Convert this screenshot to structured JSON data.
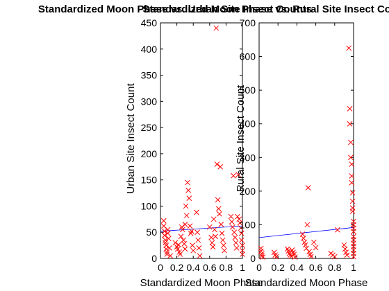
{
  "chart_data": [
    {
      "type": "scatter",
      "title": "Standardized Moon Phase vs. Urban Site Insect Counts",
      "xlabel": "Standardized Moon Phase",
      "ylabel": "Urban Site Insect Count",
      "xlim": [
        0,
        1
      ],
      "ylim": [
        0,
        450
      ],
      "xticks": [
        "0",
        "0.2",
        "0.4",
        "0.6",
        "0.8",
        "1"
      ],
      "yticks": [
        "0",
        "50",
        "100",
        "150",
        "200",
        "250",
        "300",
        "350",
        "400",
        "450"
      ],
      "grid": false,
      "marker_color": "#ff0000",
      "trend_color": "#0000ff",
      "trend": {
        "x": [
          0,
          1
        ],
        "y": [
          52,
          62
        ]
      },
      "points": [
        [
          0.04,
          72
        ],
        [
          0.04,
          62
        ],
        [
          0.05,
          52
        ],
        [
          0.05,
          44
        ],
        [
          0.06,
          35
        ],
        [
          0.06,
          30
        ],
        [
          0.07,
          25
        ],
        [
          0.07,
          18
        ],
        [
          0.08,
          12
        ],
        [
          0.08,
          8
        ],
        [
          0.09,
          55
        ],
        [
          0.09,
          48
        ],
        [
          0.1,
          38
        ],
        [
          0.11,
          20
        ],
        [
          0.12,
          5
        ],
        [
          0.18,
          30
        ],
        [
          0.2,
          22
        ],
        [
          0.21,
          18
        ],
        [
          0.22,
          26
        ],
        [
          0.23,
          12
        ],
        [
          0.24,
          8
        ],
        [
          0.25,
          42
        ],
        [
          0.26,
          60
        ],
        [
          0.27,
          55
        ],
        [
          0.28,
          35
        ],
        [
          0.29,
          28
        ],
        [
          0.3,
          18
        ],
        [
          0.3,
          65
        ],
        [
          0.31,
          100
        ],
        [
          0.32,
          82
        ],
        [
          0.33,
          145
        ],
        [
          0.34,
          130
        ],
        [
          0.35,
          115
        ],
        [
          0.36,
          62
        ],
        [
          0.37,
          48
        ],
        [
          0.38,
          52
        ],
        [
          0.39,
          25
        ],
        [
          0.4,
          15
        ],
        [
          0.44,
          88
        ],
        [
          0.45,
          50
        ],
        [
          0.46,
          35
        ],
        [
          0.47,
          20
        ],
        [
          0.48,
          5
        ],
        [
          0.6,
          60
        ],
        [
          0.62,
          40
        ],
        [
          0.63,
          30
        ],
        [
          0.64,
          22
        ],
        [
          0.65,
          75
        ],
        [
          0.66,
          55
        ],
        [
          0.67,
          42
        ],
        [
          0.68,
          440
        ],
        [
          0.69,
          180
        ],
        [
          0.7,
          112
        ],
        [
          0.71,
          95
        ],
        [
          0.72,
          85
        ],
        [
          0.73,
          175
        ],
        [
          0.74,
          65
        ],
        [
          0.75,
          48
        ],
        [
          0.76,
          35
        ],
        [
          0.77,
          25
        ],
        [
          0.78,
          15
        ],
        [
          0.86,
          80
        ],
        [
          0.87,
          70
        ],
        [
          0.88,
          60
        ],
        [
          0.89,
          158
        ],
        [
          0.9,
          50
        ],
        [
          0.91,
          40
        ],
        [
          0.92,
          30
        ],
        [
          0.93,
          20
        ],
        [
          0.94,
          80
        ],
        [
          0.95,
          160
        ],
        [
          0.96,
          75
        ],
        [
          0.97,
          68
        ],
        [
          0.98,
          58
        ],
        [
          0.99,
          48
        ],
        [
          0.99,
          35
        ],
        [
          1,
          25
        ],
        [
          1,
          15
        ],
        [
          1,
          8
        ]
      ]
    },
    {
      "type": "scatter",
      "title": "Standardized Moon Phase vs. Rural Site Insect Counts",
      "xlabel": "Standardized Moon Phase",
      "ylabel": "Rural Site Insect Count",
      "xlim": [
        0,
        1
      ],
      "ylim": [
        0,
        700
      ],
      "xticks": [
        "0",
        "0.2",
        "0.4",
        "0.6",
        "0.8",
        "1"
      ],
      "yticks": [
        "0",
        "100",
        "200",
        "300",
        "400",
        "500",
        "600",
        "700"
      ],
      "grid": false,
      "marker_color": "#ff0000",
      "trend_color": "#0000ff",
      "trend": {
        "x": [
          0,
          1
        ],
        "y": [
          62,
          92
        ]
      },
      "points": [
        [
          0.02,
          30
        ],
        [
          0.02,
          22
        ],
        [
          0.03,
          14
        ],
        [
          0.03,
          8
        ],
        [
          0.04,
          4
        ],
        [
          0.16,
          18
        ],
        [
          0.17,
          10
        ],
        [
          0.18,
          5
        ],
        [
          0.3,
          28
        ],
        [
          0.31,
          22
        ],
        [
          0.32,
          15
        ],
        [
          0.33,
          10
        ],
        [
          0.34,
          6
        ],
        [
          0.35,
          25
        ],
        [
          0.36,
          18
        ],
        [
          0.37,
          12
        ],
        [
          0.38,
          4
        ],
        [
          0.46,
          72
        ],
        [
          0.47,
          60
        ],
        [
          0.48,
          48
        ],
        [
          0.49,
          40
        ],
        [
          0.5,
          30
        ],
        [
          0.51,
          100
        ],
        [
          0.52,
          210
        ],
        [
          0.53,
          20
        ],
        [
          0.54,
          12
        ],
        [
          0.55,
          6
        ],
        [
          0.58,
          48
        ],
        [
          0.6,
          32
        ],
        [
          0.76,
          15
        ],
        [
          0.78,
          10
        ],
        [
          0.8,
          5
        ],
        [
          0.83,
          85
        ],
        [
          0.9,
          40
        ],
        [
          0.91,
          28
        ],
        [
          0.92,
          18
        ],
        [
          0.93,
          10
        ],
        [
          0.95,
          625
        ],
        [
          0.96,
          445
        ],
        [
          0.96,
          400
        ],
        [
          0.97,
          345
        ],
        [
          0.97,
          300
        ],
        [
          0.98,
          280
        ],
        [
          0.98,
          245
        ],
        [
          0.98,
          225
        ],
        [
          0.99,
          195
        ],
        [
          0.99,
          170
        ],
        [
          0.99,
          150
        ],
        [
          0.99,
          140
        ],
        [
          1,
          110
        ],
        [
          1,
          100
        ],
        [
          1,
          90
        ],
        [
          1,
          80
        ],
        [
          1,
          65
        ],
        [
          1,
          55
        ],
        [
          1,
          45
        ],
        [
          1,
          35
        ],
        [
          1,
          25
        ],
        [
          1,
          15
        ],
        [
          1,
          5
        ]
      ]
    }
  ]
}
